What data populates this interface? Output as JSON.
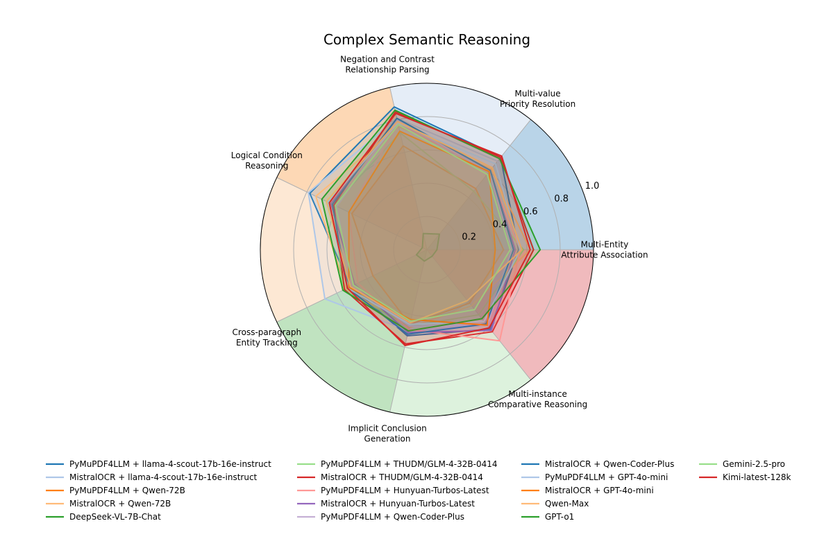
{
  "chart_data": {
    "type": "radar",
    "title": "Complex Semantic Reasoning",
    "rmax": 1.0,
    "ticks": [
      {
        "value": 0.2,
        "label": "0.2"
      },
      {
        "value": 0.4,
        "label": "0.4"
      },
      {
        "value": 0.6,
        "label": "0.6"
      },
      {
        "value": 0.8,
        "label": "0.8"
      },
      {
        "value": 1.0,
        "label": "1.0"
      }
    ],
    "categories": [
      {
        "lines": [
          "Multi-Entity",
          "Attribute Association"
        ]
      },
      {
        "lines": [
          "Multi-value",
          "Priority Resolution"
        ]
      },
      {
        "lines": [
          "Negation and Contrast",
          "Relationship Parsing"
        ]
      },
      {
        "lines": [
          "Logical Condition",
          "Reasoning"
        ]
      },
      {
        "lines": [
          "Cross-paragraph",
          "Entity Tracking"
        ]
      },
      {
        "lines": [
          "Implicit Conclusion",
          "Generation"
        ]
      },
      {
        "lines": [
          "Multi-instance",
          "Comparative Reasoning"
        ]
      }
    ],
    "sector_colors": [
      "#b9d4e8",
      "#e5edf7",
      "#fdd8b5",
      "#fde8d4",
      "#c0e3c0",
      "#ddf2dd",
      "#f0babd"
    ],
    "series": [
      {
        "name": "PyMuPDF4LLM + llama-4-scout-17b-16e-instruct",
        "color": "#1f77b4",
        "values": [
          0.55,
          0.71,
          0.88,
          0.78,
          0.51,
          0.53,
          0.61
        ]
      },
      {
        "name": "MistralOCR + llama-4-scout-17b-16e-instruct",
        "color": "#aec7e8",
        "values": [
          0.5,
          0.68,
          0.81,
          0.79,
          0.68,
          0.5,
          0.58
        ]
      },
      {
        "name": "PyMuPDF4LLM + Qwen-72B",
        "color": "#ff7f0e",
        "values": [
          0.46,
          0.47,
          0.64,
          0.5,
          0.36,
          0.46,
          0.41
        ]
      },
      {
        "name": "MistralOCR + Qwen-72B",
        "color": "#ffbb78",
        "values": [
          0.62,
          0.62,
          0.76,
          0.74,
          0.54,
          0.48,
          0.43
        ]
      },
      {
        "name": "DeepSeek-VL-7B-Chat",
        "color": "#2ca02c",
        "values": [
          0.06,
          0.12,
          0.1,
          0.03,
          0.07,
          0.07,
          0.05
        ]
      },
      {
        "name": "PyMuPDF4LLM + THUDM/GLM-4-32B-0414",
        "color": "#98df8a",
        "values": [
          0.58,
          0.45,
          0.72,
          0.62,
          0.56,
          0.47,
          0.5
        ]
      },
      {
        "name": "MistralOCR + THUDM/GLM-4-32B-0414",
        "color": "#d62728",
        "values": [
          0.64,
          0.71,
          0.85,
          0.62,
          0.55,
          0.58,
          0.63
        ]
      },
      {
        "name": "PyMuPDF4LLM + Hunyuan-Turbos-Latest",
        "color": "#ff9896",
        "values": [
          0.56,
          0.6,
          0.78,
          0.52,
          0.46,
          0.49,
          0.7
        ]
      },
      {
        "name": "MistralOCR + Hunyuan-Turbos-Latest",
        "color": "#9467bd",
        "values": [
          0.53,
          0.61,
          0.8,
          0.64,
          0.48,
          0.51,
          0.62
        ]
      },
      {
        "name": "PyMuPDF4LLM + Qwen-Coder-Plus",
        "color": "#c5b0d5",
        "values": [
          0.51,
          0.6,
          0.8,
          0.6,
          0.5,
          0.47,
          0.58
        ]
      },
      {
        "name": "MistralOCR + Qwen-Coder-Plus",
        "color": "#1f77b4",
        "values": [
          0.52,
          0.61,
          0.81,
          0.63,
          0.53,
          0.52,
          0.57
        ]
      },
      {
        "name": "PyMuPDF4LLM + GPT-4o-mini",
        "color": "#aec7e8",
        "values": [
          0.56,
          0.66,
          0.78,
          0.66,
          0.53,
          0.46,
          0.55
        ]
      },
      {
        "name": "MistralOCR + GPT-4o-mini",
        "color": "#ff7f0e",
        "values": [
          0.41,
          0.6,
          0.73,
          0.52,
          0.52,
          0.43,
          0.58
        ]
      },
      {
        "name": "Qwen-Max",
        "color": "#ffbb78",
        "values": [
          0.57,
          0.63,
          0.79,
          0.67,
          0.51,
          0.45,
          0.39
        ]
      },
      {
        "name": "GPT-o1",
        "color": "#2ca02c",
        "values": [
          0.68,
          0.7,
          0.86,
          0.7,
          0.56,
          0.5,
          0.53
        ]
      },
      {
        "name": "Gemini-2.5-pro",
        "color": "#98df8a",
        "values": [
          0.5,
          0.58,
          0.77,
          0.61,
          0.49,
          0.44,
          0.46
        ]
      },
      {
        "name": "Kimi-latest-128k",
        "color": "#d62728",
        "values": [
          0.62,
          0.72,
          0.84,
          0.65,
          0.53,
          0.59,
          0.6
        ]
      }
    ]
  }
}
